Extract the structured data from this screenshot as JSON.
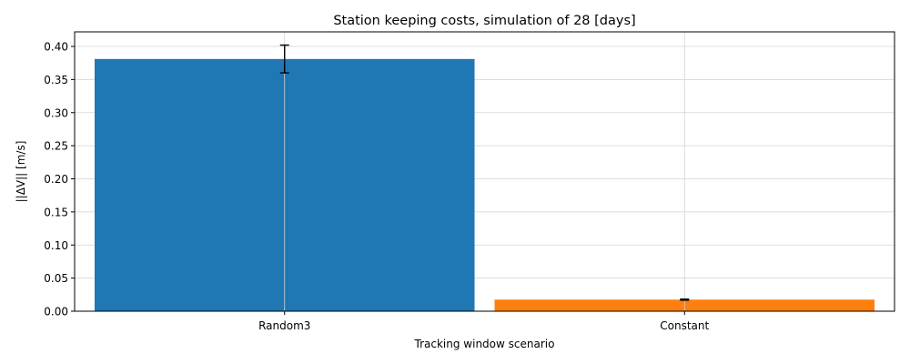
{
  "chart_data": {
    "type": "bar",
    "title": "Station keeping costs, simulation of 28 [days]",
    "xlabel": "Tracking window scenario",
    "ylabel": "||ΔV|| [m/s]",
    "categories": [
      "Random3",
      "Constant"
    ],
    "values": [
      0.381,
      0.0175
    ],
    "errors": [
      0.021,
      0.0008
    ],
    "colors": [
      "#1f77b4",
      "#ff7f0e"
    ],
    "ylim": [
      0,
      0.422
    ],
    "yticks": [
      "0.00",
      "0.05",
      "0.10",
      "0.15",
      "0.20",
      "0.25",
      "0.30",
      "0.35",
      "0.40"
    ],
    "grid": true,
    "legend": "none"
  }
}
